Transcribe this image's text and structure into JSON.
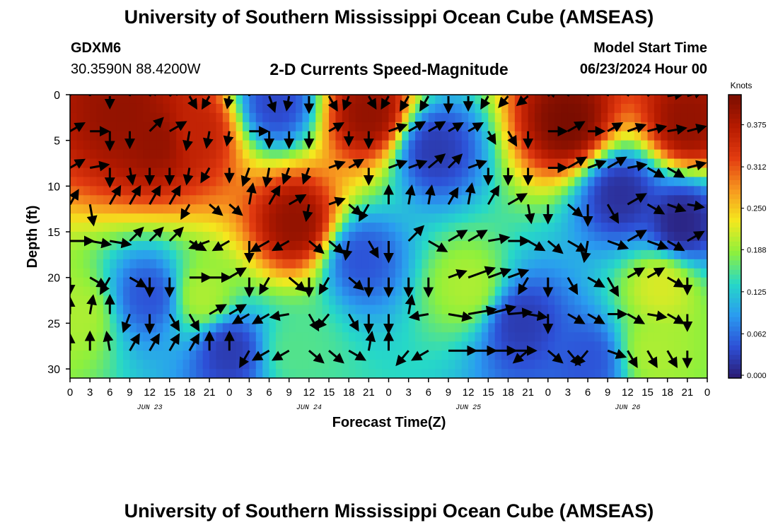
{
  "header": {
    "title": "University of Southern Mississippi Ocean Cube (AMSEAS)",
    "station_id": "GDXM6",
    "station_coords": "30.3590N  88.4200W",
    "plot_title": "2-D Currents Speed-Magnitude",
    "model_start_label": "Model Start Time",
    "model_start_value": "06/23/2024 Hour 00"
  },
  "footer": {
    "title": "University of Southern Mississippi Ocean Cube (AMSEAS)"
  },
  "colors": {
    "colormap": [
      "#2b1a70",
      "#2d4fd6",
      "#2a9bf0",
      "#26d8c8",
      "#8ef03c",
      "#f4e81e",
      "#f7961f",
      "#e23b10",
      "#b51a00",
      "#7a0d00"
    ]
  },
  "chart_data": {
    "type": "heatmap",
    "title": "2-D Currents Speed-Magnitude",
    "xlabel": "Forecast Time(Z)",
    "ylabel": "Depth (ft)",
    "x_range_hours": [
      0,
      96
    ],
    "x_ticks_hours": [
      0,
      3,
      6,
      9,
      12,
      15,
      18,
      21,
      24,
      27,
      30,
      33,
      36,
      39,
      42,
      45,
      48,
      51,
      54,
      57,
      60,
      63,
      66,
      69,
      72,
      75,
      78,
      81,
      84,
      87,
      90,
      93,
      96
    ],
    "x_tick_labels": [
      "0",
      "3",
      "6",
      "9",
      "12",
      "15",
      "18",
      "21",
      "0",
      "3",
      "6",
      "9",
      "12",
      "15",
      "18",
      "21",
      "0",
      "3",
      "6",
      "9",
      "12",
      "15",
      "18",
      "21",
      "0",
      "3",
      "6",
      "9",
      "12",
      "15",
      "18",
      "21",
      "0"
    ],
    "date_labels": [
      {
        "text": "JUN 23",
        "hour": 12
      },
      {
        "text": "JUN 24",
        "hour": 36
      },
      {
        "text": "JUN 25",
        "hour": 60
      },
      {
        "text": "JUN 26",
        "hour": 84
      }
    ],
    "y_range_ft": [
      0,
      31
    ],
    "y_ticks": [
      0,
      5,
      10,
      15,
      20,
      25,
      30
    ],
    "y_tick_labels": [
      "0",
      "5",
      "10",
      "15",
      "20",
      "25",
      "30"
    ],
    "colorbar": {
      "unit": "Knots",
      "range": [
        0,
        0.42
      ],
      "ticks": [
        0.0,
        0.062,
        0.125,
        0.188,
        0.25,
        0.312,
        0.375
      ],
      "tick_labels": [
        "0.000",
        "0.062",
        "0.125",
        "0.188",
        "0.250",
        "0.312",
        "0.375"
      ]
    },
    "speed_features_knots": [
      {
        "hour": 13,
        "depth": 5,
        "speed": 0.4
      },
      {
        "hour": 8,
        "depth": 2,
        "speed": 0.4
      },
      {
        "hour": 19,
        "depth": 4,
        "speed": 0.36
      },
      {
        "hour": 31,
        "depth": 1,
        "speed": 0.04
      },
      {
        "hour": 34,
        "depth": 14,
        "speed": 0.4
      },
      {
        "hour": 45,
        "depth": 2,
        "speed": 0.4
      },
      {
        "hour": 55,
        "depth": 6,
        "speed": 0.03
      },
      {
        "hour": 75,
        "depth": 3,
        "speed": 0.42
      },
      {
        "hour": 83,
        "depth": 11,
        "speed": 0.02
      },
      {
        "hour": 93,
        "depth": 3,
        "speed": 0.4
      },
      {
        "hour": 92,
        "depth": 14,
        "speed": 0.01
      },
      {
        "hour": 60,
        "depth": 21,
        "speed": 0.2
      },
      {
        "hour": 89,
        "depth": 21,
        "speed": 0.22
      },
      {
        "hour": 1,
        "depth": 24,
        "speed": 0.2
      },
      {
        "hour": 20,
        "depth": 22,
        "speed": 0.2
      },
      {
        "hour": 88,
        "depth": 28,
        "speed": 0.2
      },
      {
        "hour": 34,
        "depth": 28,
        "speed": 0.16
      },
      {
        "hour": 12,
        "depth": 22,
        "speed": 0.05
      },
      {
        "hour": 24,
        "depth": 28,
        "speed": 0.03
      },
      {
        "hour": 68,
        "depth": 25,
        "speed": 0.03
      },
      {
        "hour": 44,
        "depth": 18,
        "speed": 0.05
      },
      {
        "hour": 78,
        "depth": 29,
        "speed": 0.05
      }
    ],
    "vector_depths_ft": [
      0,
      4,
      8,
      12,
      16,
      20,
      24,
      28
    ],
    "vector_hours": [
      0,
      3,
      6,
      9,
      12,
      15,
      18,
      21,
      24,
      27,
      30,
      33,
      36,
      39,
      42,
      45,
      48,
      51,
      54,
      57,
      60,
      63,
      66,
      69,
      72,
      75,
      78,
      81,
      84,
      87,
      90,
      93
    ],
    "vector_direction_deg_from_east": [
      [
        90,
        90,
        -90,
        80,
        60,
        45,
        -60,
        -120,
        -100,
        90,
        -70,
        -100,
        -90,
        -60,
        -110,
        -60,
        -120,
        -120,
        -120,
        -90,
        -90,
        -120,
        -130,
        -140,
        45,
        60,
        75,
        75,
        60,
        45,
        10,
        20
      ],
      [
        30,
        0,
        -90,
        -90,
        45,
        30,
        -100,
        -100,
        -100,
        0,
        -90,
        -90,
        -90,
        30,
        -90,
        -90,
        20,
        30,
        30,
        30,
        30,
        -60,
        -60,
        -90,
        0,
        30,
        0,
        30,
        20,
        15,
        10,
        15
      ],
      [
        30,
        10,
        -90,
        -80,
        -90,
        -90,
        -100,
        -120,
        -90,
        -110,
        -100,
        -110,
        -110,
        20,
        30,
        -90,
        20,
        20,
        40,
        45,
        20,
        -90,
        -90,
        -90,
        0,
        30,
        20,
        30,
        10,
        -30,
        -30,
        15
      ],
      [
        60,
        -80,
        60,
        60,
        60,
        60,
        -120,
        -40,
        -40,
        80,
        60,
        30,
        -100,
        20,
        -40,
        -120,
        90,
        80,
        80,
        60,
        80,
        60,
        30,
        -80,
        -90,
        -40,
        -90,
        -60,
        30,
        -30,
        -20,
        -10
      ],
      [
        0,
        -10,
        -10,
        45,
        45,
        45,
        -30,
        -160,
        -150,
        -90,
        -150,
        -150,
        -40,
        -40,
        -100,
        -60,
        -90,
        45,
        -30,
        30,
        30,
        10,
        0,
        -30,
        -40,
        -30,
        -100,
        -20,
        30,
        -20,
        -30,
        30
      ],
      [
        -90,
        -30,
        -120,
        -30,
        -90,
        -90,
        0,
        0,
        30,
        -90,
        -120,
        -40,
        -90,
        -120,
        -40,
        -90,
        -90,
        -90,
        -90,
        20,
        20,
        20,
        20,
        -120,
        -90,
        -60,
        -30,
        -60,
        30,
        30,
        -30,
        -90
      ],
      [
        90,
        80,
        90,
        -110,
        -90,
        -60,
        -60,
        30,
        30,
        -150,
        -150,
        -170,
        -60,
        -130,
        -60,
        -90,
        -90,
        80,
        -170,
        -10,
        10,
        15,
        5,
        -10,
        -90,
        -30,
        -30,
        0,
        -30,
        -10,
        -30,
        -90
      ],
      [
        90,
        90,
        100,
        60,
        60,
        60,
        60,
        90,
        90,
        -120,
        -150,
        -150,
        -40,
        -40,
        -30,
        80,
        90,
        -130,
        -150,
        0,
        0,
        0,
        0,
        -140,
        -40,
        -50,
        -130,
        -20,
        -60,
        -60,
        -60,
        -90
      ]
    ],
    "vector_length_rel": [
      [
        0.6,
        0.6,
        0.5,
        0.5,
        0.5,
        0.6,
        0.6,
        0.6,
        0.5,
        0.6,
        0.7,
        0.6,
        0.7,
        0.7,
        0.6,
        0.6,
        0.6,
        0.7,
        0.7,
        0.7,
        0.6,
        0.6,
        0.6,
        0.6,
        0.5,
        0.6,
        0.6,
        0.6,
        0.6,
        0.7,
        0.7,
        0.7
      ],
      [
        0.7,
        0.8,
        0.8,
        0.7,
        0.8,
        0.8,
        0.8,
        0.7,
        0.6,
        0.8,
        0.7,
        0.7,
        0.7,
        0.7,
        0.6,
        0.7,
        0.8,
        0.8,
        0.8,
        0.7,
        0.7,
        0.6,
        0.7,
        0.7,
        0.8,
        0.8,
        0.7,
        0.7,
        0.8,
        0.8,
        0.8,
        0.8
      ],
      [
        0.7,
        0.8,
        0.8,
        0.7,
        0.7,
        0.7,
        0.7,
        0.7,
        0.6,
        0.8,
        0.8,
        0.7,
        0.7,
        0.7,
        0.7,
        0.7,
        0.8,
        0.8,
        0.9,
        0.8,
        0.8,
        0.7,
        0.7,
        0.7,
        0.8,
        0.9,
        0.8,
        0.9,
        0.8,
        0.8,
        0.8,
        0.8
      ],
      [
        0.7,
        0.9,
        0.9,
        0.9,
        0.9,
        0.9,
        0.7,
        0.7,
        0.7,
        0.9,
        0.9,
        0.8,
        0.7,
        0.7,
        0.7,
        0.8,
        0.8,
        0.8,
        0.8,
        0.8,
        0.9,
        0.9,
        0.9,
        0.8,
        0.8,
        0.8,
        0.9,
        0.9,
        0.9,
        0.8,
        0.8,
        0.7
      ],
      [
        1.0,
        0.9,
        0.9,
        0.8,
        0.8,
        0.8,
        0.8,
        0.9,
        0.8,
        0.9,
        0.9,
        0.8,
        0.8,
        0.8,
        0.8,
        0.8,
        0.9,
        0.9,
        0.9,
        0.9,
        0.9,
        0.9,
        0.9,
        0.8,
        0.8,
        0.9,
        0.9,
        0.9,
        0.9,
        0.9,
        0.8,
        0.8
      ],
      [
        0.7,
        0.8,
        0.8,
        0.8,
        0.8,
        0.8,
        0.9,
        0.9,
        0.8,
        0.8,
        0.8,
        0.9,
        0.8,
        0.8,
        0.8,
        0.8,
        0.8,
        0.8,
        0.8,
        0.8,
        1.2,
        1.0,
        0.9,
        0.8,
        0.8,
        0.8,
        0.8,
        0.9,
        0.8,
        0.8,
        0.8,
        0.7
      ],
      [
        0.7,
        0.8,
        0.8,
        0.8,
        0.8,
        0.8,
        0.8,
        0.8,
        0.8,
        0.8,
        0.8,
        0.8,
        0.8,
        0.8,
        0.8,
        0.8,
        0.8,
        0.8,
        0.8,
        1.0,
        1.2,
        1.2,
        1.0,
        0.8,
        0.8,
        0.8,
        0.8,
        0.8,
        0.8,
        0.8,
        0.8,
        0.7
      ],
      [
        0.7,
        0.8,
        0.8,
        0.8,
        0.8,
        0.8,
        0.8,
        0.8,
        0.8,
        0.8,
        0.8,
        0.8,
        0.8,
        0.8,
        0.8,
        0.8,
        0.8,
        0.8,
        0.8,
        1.2,
        1.2,
        1.2,
        1.2,
        0.8,
        0.8,
        0.8,
        0.8,
        0.8,
        0.8,
        0.8,
        0.8,
        0.7
      ]
    ]
  }
}
